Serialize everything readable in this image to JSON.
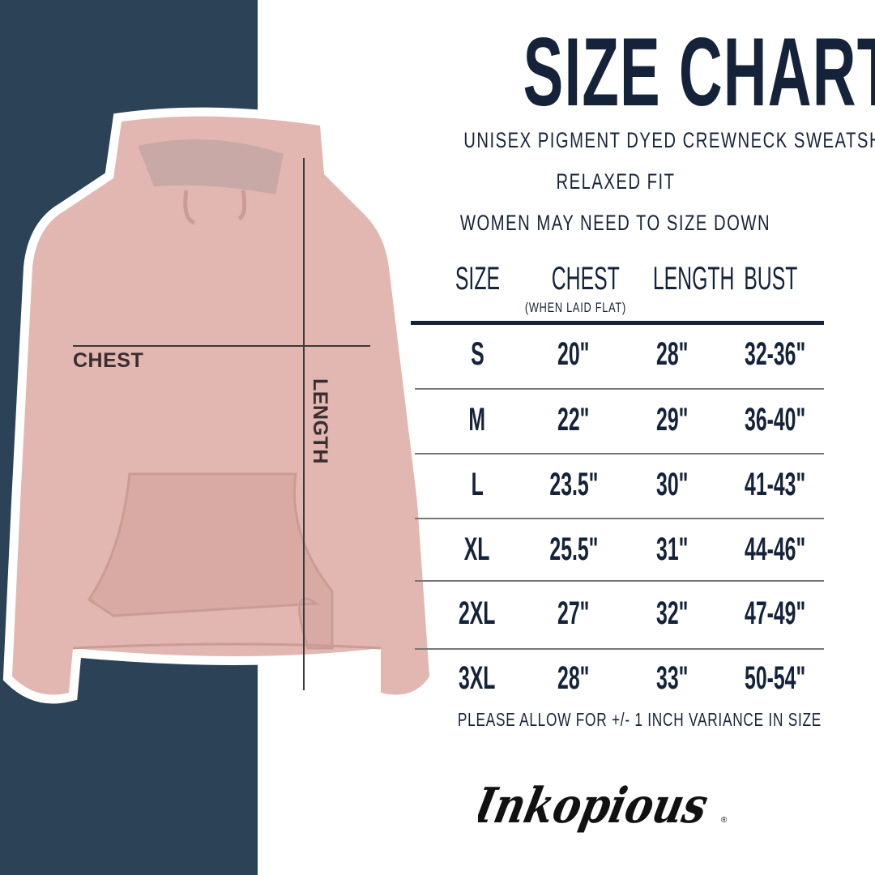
{
  "title": "SIZE CHART",
  "subtitle_lines": [
    "UNISEX PIGMENT DYED CREWNECK SWEATSHIRT",
    "RELAXED FIT",
    "WOMEN MAY NEED TO SIZE DOWN"
  ],
  "table": {
    "headers": [
      "SIZE",
      "CHEST",
      "LENGTH",
      "BUST"
    ],
    "chest_note": "(WHEN LAID FLAT)",
    "rows": [
      [
        "S",
        "20\"",
        "28\"",
        "32-36\""
      ],
      [
        "M",
        "22\"",
        "29\"",
        "36-40\""
      ],
      [
        "L",
        "23.5\"",
        "30\"",
        "41-43\""
      ],
      [
        "XL",
        "25.5\"",
        "31\"",
        "44-46\""
      ],
      [
        "2XL",
        "27\"",
        "32\"",
        "47-49\""
      ],
      [
        "3XL",
        "28\"",
        "33\"",
        "50-54\""
      ]
    ]
  },
  "variance_note": "PLEASE ALLOW FOR +/- 1 INCH VARIANCE IN SIZE",
  "diagram": {
    "chest_label": "CHEST",
    "length_label": "LENGTH"
  },
  "brand": "Inkopious",
  "colors": {
    "panel": "#2c4257",
    "text": "#15233a",
    "garment": "#e2b7b1"
  }
}
